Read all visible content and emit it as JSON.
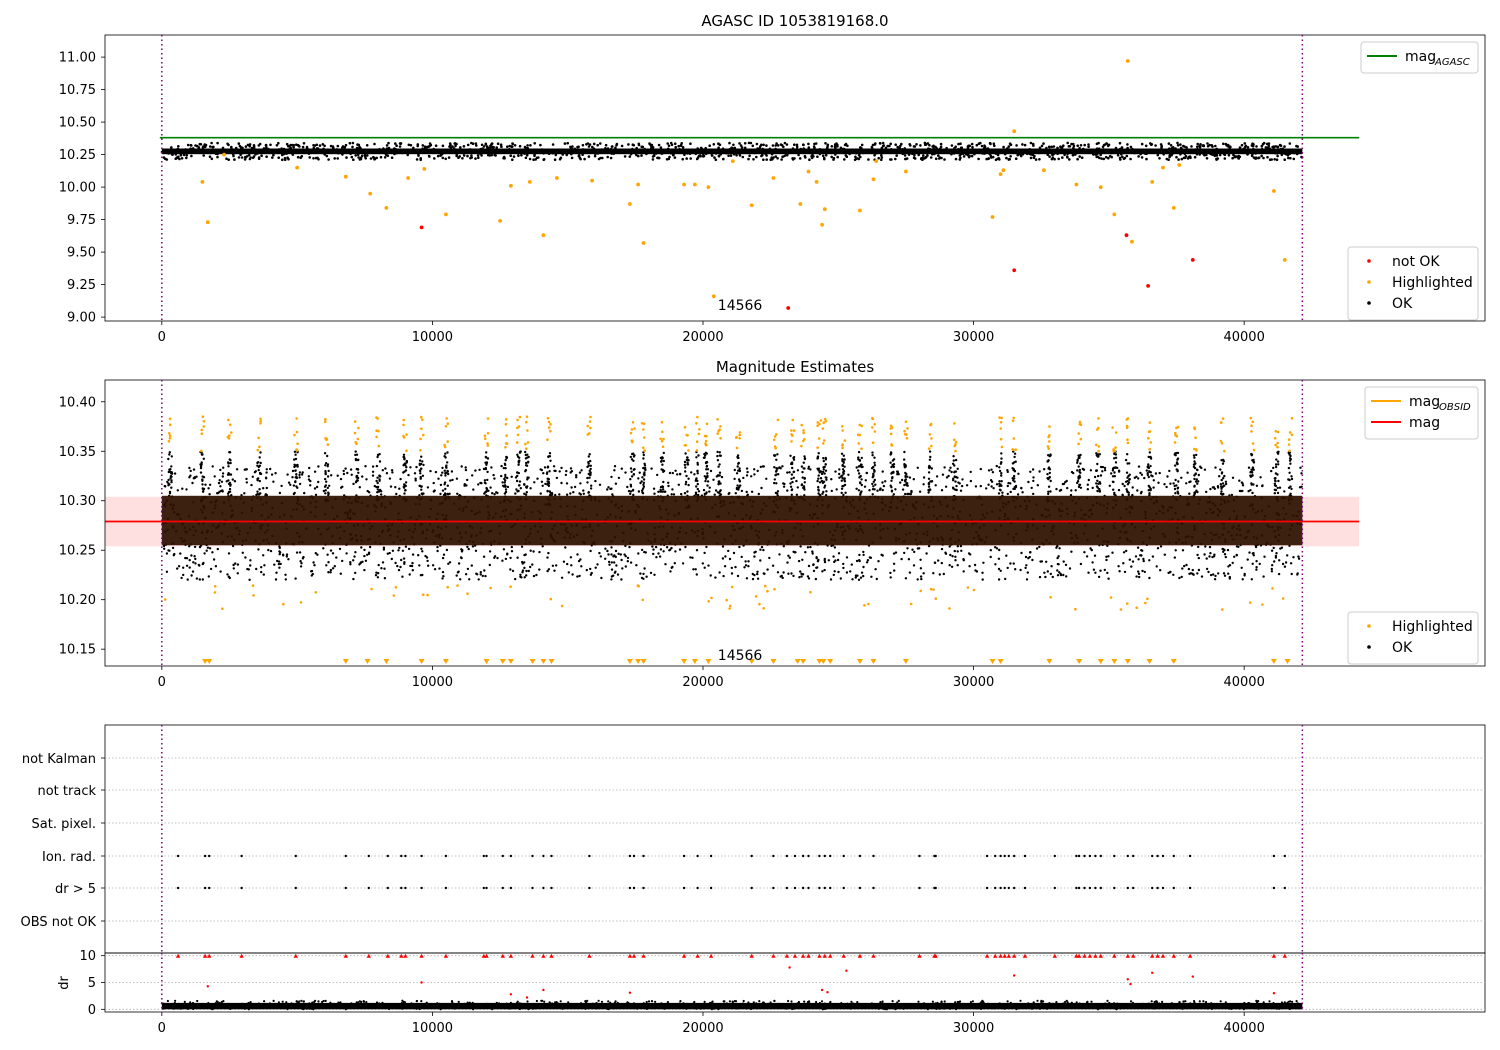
{
  "chart_data": [
    {
      "id": "top",
      "type": "scatter",
      "title": "AGASC ID 1053819168.0",
      "xlim": [
        -2100,
        48900
      ],
      "ylim": [
        8.97,
        11.17
      ],
      "xticks": [
        0,
        10000,
        20000,
        30000,
        40000
      ],
      "yticks": [
        9.0,
        9.25,
        9.5,
        9.75,
        10.0,
        10.25,
        10.5,
        10.75,
        11.0
      ],
      "ytick_labels": [
        "9.00",
        "9.25",
        "9.50",
        "9.75",
        "10.00",
        "10.25",
        "10.50",
        "10.75",
        "11.00"
      ],
      "vlines": [
        0,
        42150
      ],
      "hline": {
        "label": "mag",
        "label_sub": "AGASC",
        "y": 10.38,
        "x_end": 44250,
        "color": "#008000"
      },
      "ok_band": {
        "x_start": 0,
        "x_end": 42150,
        "y_low": 10.23,
        "y_high": 10.32,
        "color": "#000000"
      },
      "series": [
        {
          "name": "not OK",
          "color": "#ff0000",
          "x": [
            9600,
            23150,
            31500,
            35650,
            36450,
            38100
          ],
          "y": [
            9.69,
            9.07,
            9.36,
            9.63,
            9.24,
            9.44
          ]
        },
        {
          "name": "Highlighted",
          "color": "#ffa500",
          "x": [
            1500,
            1700,
            2300,
            5000,
            6800,
            7700,
            8300,
            9100,
            9700,
            10500,
            12500,
            12900,
            13600,
            14100,
            14600,
            15900,
            17300,
            17600,
            17800,
            19300,
            19700,
            20200,
            20400,
            21100,
            21800,
            22600,
            23600,
            23900,
            24200,
            24400,
            24500,
            25800,
            26300,
            26400,
            27500,
            30700,
            31000,
            31100,
            31500,
            32600,
            33800,
            34700,
            35200,
            35700,
            35850,
            36600,
            37000,
            37400,
            37600,
            41100,
            41500
          ],
          "y": [
            10.04,
            9.73,
            10.25,
            10.15,
            10.08,
            9.95,
            9.84,
            10.07,
            10.14,
            9.79,
            9.74,
            10.01,
            10.04,
            9.63,
            10.07,
            10.05,
            9.87,
            10.02,
            9.57,
            10.02,
            10.02,
            10.0,
            9.16,
            10.2,
            9.86,
            10.07,
            9.87,
            10.12,
            10.04,
            9.71,
            9.83,
            9.82,
            10.06,
            10.2,
            10.12,
            9.77,
            10.1,
            10.13,
            10.43,
            10.13,
            10.02,
            10.0,
            9.79,
            10.97,
            9.58,
            10.04,
            10.15,
            9.84,
            10.17,
            9.97,
            9.44
          ]
        },
        {
          "name": "OK",
          "color": "#000000"
        }
      ],
      "annotation": {
        "text": "14566",
        "x": 21000,
        "y": 9.07
      },
      "legends": [
        {
          "position": "upper-right",
          "entries": [
            {
              "label": "mag",
              "sub": "AGASC",
              "kind": "line",
              "color": "#008000"
            }
          ]
        },
        {
          "position": "lower-right",
          "entries": [
            {
              "label": "not OK",
              "kind": "dot",
              "color": "#ff0000"
            },
            {
              "label": "Highlighted",
              "kind": "dot",
              "color": "#ffa500"
            },
            {
              "label": "OK",
              "kind": "dot",
              "color": "#000000"
            }
          ]
        }
      ]
    },
    {
      "id": "mid",
      "type": "scatter",
      "title": "Magnitude Estimates",
      "xlim": [
        -2100,
        48900
      ],
      "ylim": [
        10.133,
        10.422
      ],
      "xticks": [
        0,
        10000,
        20000,
        30000,
        40000
      ],
      "yticks": [
        10.15,
        10.2,
        10.25,
        10.3,
        10.35,
        10.4
      ],
      "ytick_labels": [
        "10.15",
        "10.20",
        "10.25",
        "10.30",
        "10.35",
        "10.40"
      ],
      "vlines": [
        0,
        42150
      ],
      "mag_line": {
        "label": "mag",
        "y": 10.279,
        "x_start": -2100,
        "x_end": 44250,
        "color": "#ff0000"
      },
      "mag_band": {
        "y_low": 10.254,
        "y_high": 10.304,
        "color": "#ffcccc"
      },
      "dense_band": {
        "x_start": 0,
        "x_end": 42150,
        "y_low": 10.255,
        "y_high": 10.305,
        "color": "#2d1100"
      },
      "mag_obsid": {
        "label": "mag",
        "sub": "OBSID",
        "color": "#ffa500"
      },
      "spike_x": [
        300,
        1500,
        2500,
        3600,
        4950,
        6100,
        7200,
        8000,
        9000,
        9600,
        10500,
        12000,
        12700,
        13200,
        13500,
        14300,
        15800,
        17400,
        17800,
        18500,
        19400,
        19800,
        20100,
        20600,
        21300,
        22700,
        23300,
        23700,
        24300,
        24500,
        25200,
        25800,
        26300,
        27000,
        27500,
        28400,
        29300,
        31000,
        31500,
        32800,
        33900,
        34600,
        35200,
        35700,
        36500,
        37500,
        38200,
        39200,
        40300,
        41200,
        41700
      ],
      "low_marker_y": 10.137,
      "low_marker_x": [
        1600,
        1750,
        6800,
        7600,
        8300,
        9600,
        10500,
        12000,
        12600,
        12900,
        13700,
        14100,
        14400,
        17300,
        17600,
        17800,
        19300,
        19700,
        20200,
        21800,
        22600,
        23500,
        23700,
        24300,
        24450,
        24700,
        25800,
        26300,
        27500,
        30700,
        31000,
        32800,
        33900,
        34700,
        35200,
        35700,
        36500,
        37400,
        41100,
        41600
      ],
      "annotation": {
        "text": "14566",
        "x": 21000,
        "y": 10.145
      },
      "series": [
        {
          "name": "Highlighted",
          "color": "#ffa500"
        },
        {
          "name": "OK",
          "color": "#000000"
        }
      ],
      "legends": [
        {
          "position": "upper-right",
          "entries": [
            {
              "label": "mag",
              "sub": "OBSID",
              "kind": "line",
              "color": "#ffa500"
            },
            {
              "label": "mag",
              "kind": "line",
              "color": "#ff0000"
            }
          ]
        },
        {
          "position": "lower-right",
          "entries": [
            {
              "label": "Highlighted",
              "kind": "dot",
              "color": "#ffa500"
            },
            {
              "label": "OK",
              "kind": "dot",
              "color": "#000000"
            }
          ]
        }
      ]
    },
    {
      "id": "flags",
      "type": "scatter",
      "xlim": [
        -2100,
        48900
      ],
      "categories": [
        "not Kalman",
        "not track",
        "Sat. pixel.",
        "Ion. rad.",
        "dr > 5",
        "OBS not OK"
      ],
      "flag_x": [
        600,
        1600,
        1750,
        2950,
        4950,
        6800,
        7650,
        8350,
        8850,
        9000,
        9600,
        10500,
        11900,
        12000,
        12600,
        12900,
        13700,
        14100,
        14400,
        15800,
        17300,
        17450,
        17800,
        19300,
        19800,
        20300,
        21800,
        22600,
        23100,
        23400,
        23700,
        23900,
        24300,
        24500,
        24700,
        25200,
        25800,
        26300,
        28000,
        28550,
        28600,
        30500,
        30800,
        31000,
        31150,
        31300,
        31500,
        31900,
        33000,
        33800,
        33900,
        34100,
        34300,
        34500,
        34700,
        35200,
        35700,
        35900,
        36600,
        36800,
        37000,
        37400,
        38000,
        41100,
        41500
      ],
      "flag_rows": [
        "Ion. rad.",
        "dr > 5"
      ],
      "vlines": [
        0,
        42150
      ]
    },
    {
      "id": "dr",
      "type": "scatter",
      "ylabel": "dr",
      "xlim": [
        -2100,
        48900
      ],
      "ylim": [
        -0.5,
        10.5
      ],
      "xticks": [
        0,
        10000,
        20000,
        30000,
        40000
      ],
      "yticks": [
        0,
        5,
        10
      ],
      "ytick_labels": [
        "0",
        "5",
        "10"
      ],
      "vlines": [
        0,
        42150
      ],
      "baseline": {
        "y_low": 0,
        "y_high": 1.2,
        "color": "#000000"
      },
      "clipped_y": 10,
      "clipped_x": [
        600,
        1600,
        1750,
        2950,
        4950,
        6800,
        7650,
        8350,
        8850,
        9000,
        9600,
        10500,
        11900,
        12000,
        12600,
        12900,
        13700,
        14100,
        14400,
        15800,
        17300,
        17450,
        17800,
        19300,
        19800,
        20300,
        21800,
        22600,
        23100,
        23400,
        23700,
        23900,
        24300,
        24500,
        24700,
        25200,
        25800,
        26300,
        28000,
        28550,
        28600,
        30500,
        30800,
        31000,
        31150,
        31300,
        31500,
        31900,
        33000,
        33800,
        33900,
        34100,
        34300,
        34500,
        34700,
        35200,
        35700,
        35900,
        36600,
        36800,
        37000,
        37400,
        38000,
        41100,
        41500
      ],
      "mid_points": {
        "x": [
          1700,
          9600,
          12900,
          13500,
          14100,
          17300,
          23200,
          24400,
          24600,
          25300,
          31500,
          35700,
          35800,
          36600,
          38100,
          41100
        ],
        "y": [
          4.3,
          5.0,
          2.8,
          2.2,
          3.6,
          3.1,
          7.8,
          3.6,
          3.2,
          7.2,
          6.3,
          5.6,
          4.7,
          6.8,
          6.1,
          3.0
        ]
      }
    }
  ]
}
